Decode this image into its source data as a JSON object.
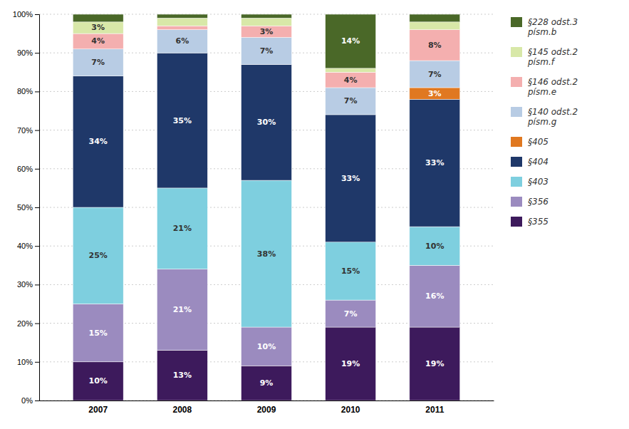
{
  "chart_data": {
    "type": "bar",
    "stacked": true,
    "grid": true,
    "legend": "right",
    "data_labels": true,
    "categories": [
      "2007",
      "2008",
      "2009",
      "2010",
      "2011"
    ],
    "ylim": [
      0,
      100
    ],
    "yticks": [
      {
        "value": 0,
        "label": "0%"
      },
      {
        "value": 10,
        "label": "10%"
      },
      {
        "value": 20,
        "label": "20%"
      },
      {
        "value": 30,
        "label": "30%"
      },
      {
        "value": 40,
        "label": "40%"
      },
      {
        "value": 50,
        "label": "50%"
      },
      {
        "value": 60,
        "label": "60%"
      },
      {
        "value": 70,
        "label": "70%"
      },
      {
        "value": 80,
        "label": "80%"
      },
      {
        "value": 90,
        "label": "90%"
      },
      {
        "value": 100,
        "label": "100%"
      }
    ],
    "series": [
      {
        "name": "§355",
        "color": "#3D1A5C",
        "values": [
          10,
          13,
          9,
          19,
          19
        ],
        "value_labels": [
          "10%",
          "13%",
          "9%",
          "19%",
          "19%"
        ]
      },
      {
        "name": "§356",
        "color": "#9B8BBF",
        "values": [
          15,
          21,
          10,
          7,
          16
        ],
        "value_labels": [
          "15%",
          "21%",
          "10%",
          "7%",
          "16%"
        ]
      },
      {
        "name": "§403",
        "color": "#7ECFDF",
        "values": [
          25,
          21,
          38,
          15,
          10
        ],
        "value_labels": [
          "25%",
          "21%",
          "38%",
          "15%",
          "10%"
        ]
      },
      {
        "name": "§404",
        "color": "#1F3869",
        "values": [
          34,
          35,
          30,
          33,
          33
        ],
        "value_labels": [
          "34%",
          "35%",
          "30%",
          "33%",
          "33%"
        ]
      },
      {
        "name": "§405",
        "color": "#E07820",
        "values": [
          0,
          0,
          0,
          0,
          3
        ],
        "value_labels": [
          null,
          null,
          null,
          null,
          "3%"
        ]
      },
      {
        "name": "§140 odst.2\npísm.g",
        "color": "#B8CCE4",
        "values": [
          7,
          6,
          7,
          7,
          7
        ],
        "value_labels": [
          "7%",
          "6%",
          "7%",
          "7%",
          "7%"
        ]
      },
      {
        "name": "§146 odst.2\npísm.e",
        "color": "#F4AFAF",
        "values": [
          4,
          1,
          3,
          4,
          8
        ],
        "value_labels": [
          "4%",
          null,
          "3%",
          "4%",
          "8%"
        ]
      },
      {
        "name": "§145 odst.2\npísm.f",
        "color": "#D8E8A8",
        "values": [
          3,
          2,
          2,
          1,
          2
        ],
        "value_labels": [
          "3%",
          null,
          null,
          null,
          null
        ]
      },
      {
        "name": "§228 odst.3\npísm.b",
        "color": "#4A6828",
        "values": [
          2,
          1,
          1,
          14,
          2
        ],
        "value_labels": [
          null,
          null,
          null,
          "14%",
          null
        ]
      }
    ]
  }
}
